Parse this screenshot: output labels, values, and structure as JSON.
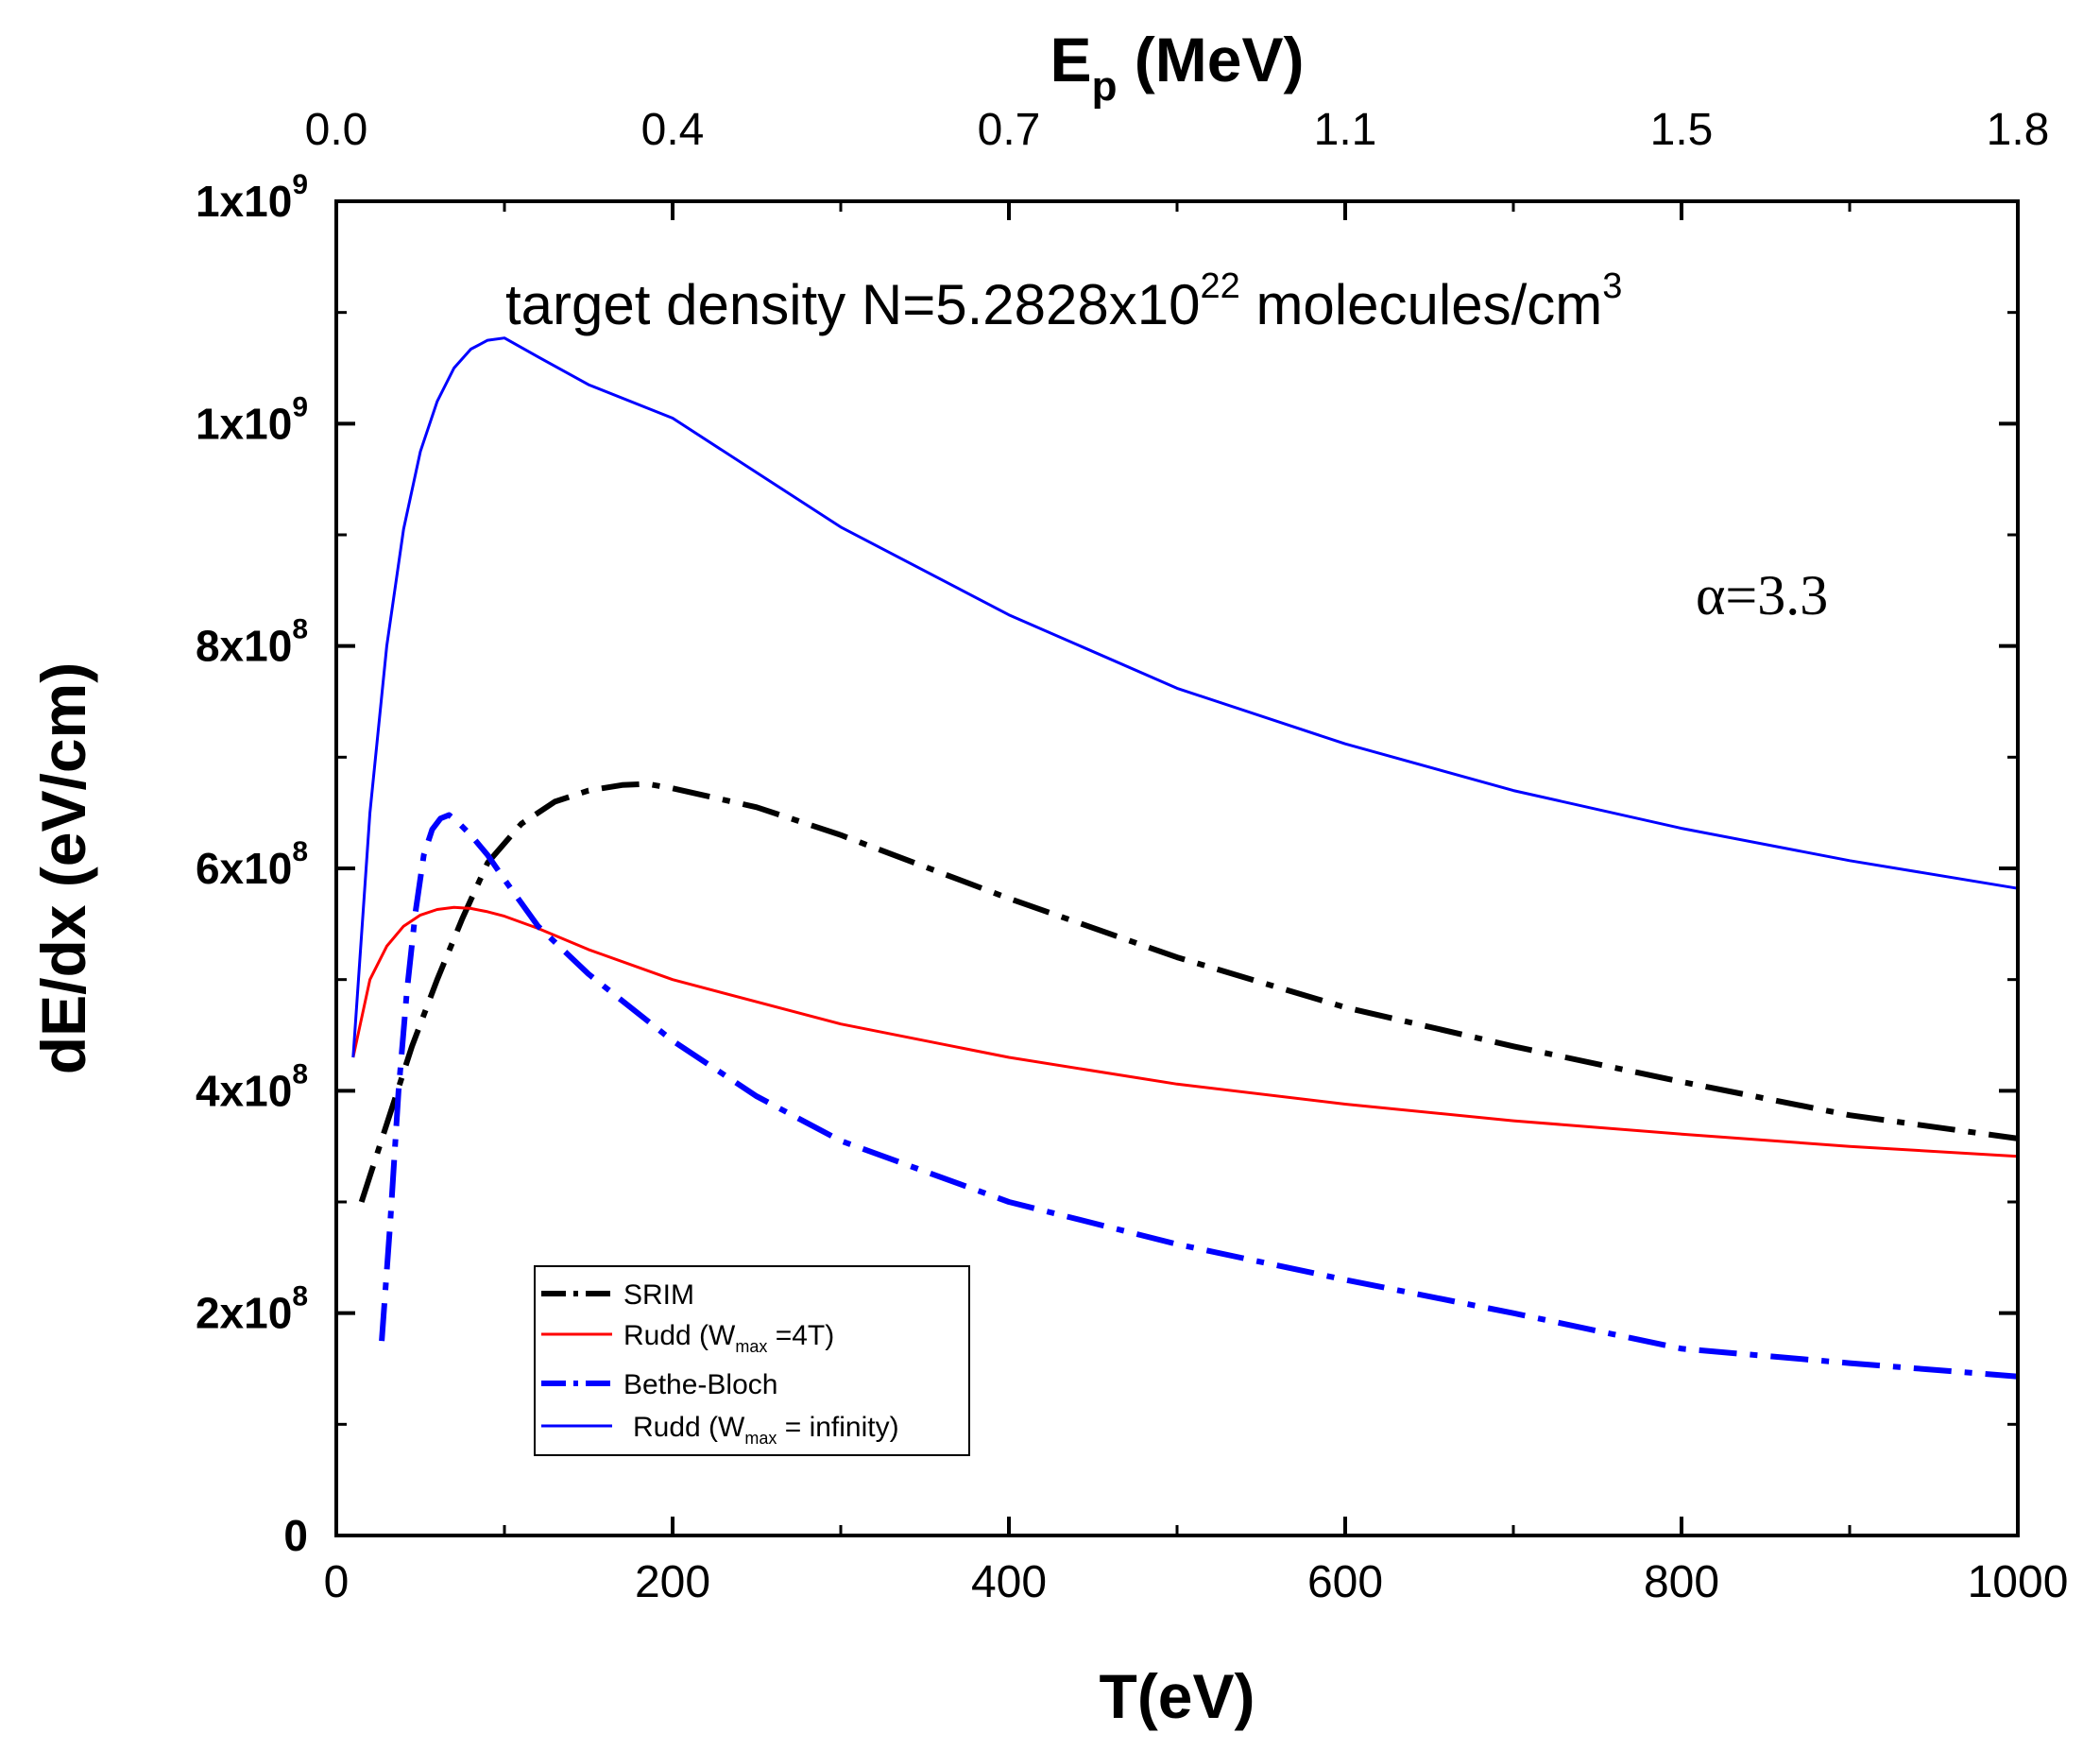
{
  "chart_data": {
    "type": "line",
    "x_axis": {
      "label": "T(eV)",
      "range": [
        0,
        1000
      ],
      "ticks": [
        0,
        200,
        400,
        600,
        800,
        1000
      ],
      "tick_labels": [
        "0",
        "200",
        "400",
        "600",
        "800",
        "1000"
      ]
    },
    "top_axis": {
      "label": "E",
      "label_sub": "p",
      "label_unit": "(MeV)",
      "tick_labels": [
        "0.0",
        "0.4",
        "0.7",
        "1.1",
        "1.5",
        "1.8"
      ]
    },
    "y_axis": {
      "label": "dE/dx (eV/cm)",
      "range": [
        0,
        1200000000
      ],
      "ticks": [
        {
          "value": 0,
          "mant": "0",
          "exp": ""
        },
        {
          "value": 200000000,
          "mant": "2x10",
          "exp": "8"
        },
        {
          "value": 400000000,
          "mant": "4x10",
          "exp": "8"
        },
        {
          "value": 600000000,
          "mant": "6x10",
          "exp": "8"
        },
        {
          "value": 800000000,
          "mant": "8x10",
          "exp": "8"
        },
        {
          "value": 1000000000,
          "mant": "1x10",
          "exp": "9"
        },
        {
          "value": 1200000000,
          "mant": "1x10",
          "exp": "9"
        }
      ]
    },
    "annotations": {
      "density_text": "target density N=5.2828x10",
      "density_exp": "22",
      "density_unit": " molecules/cm",
      "density_unit_exp": "3",
      "alpha_text": "α=3.3"
    },
    "series": [
      {
        "name": "SRIM",
        "label": "SRIM",
        "style": "dashdot",
        "thick": true,
        "color": "#000000",
        "points": [
          [
            15,
            300000000
          ],
          [
            30,
            370000000
          ],
          [
            45,
            440000000
          ],
          [
            60,
            500000000
          ],
          [
            75,
            555000000
          ],
          [
            90,
            605000000
          ],
          [
            110,
            640000000
          ],
          [
            130,
            660000000
          ],
          [
            150,
            670000000
          ],
          [
            170,
            675000000
          ],
          [
            185,
            676000000
          ],
          [
            200,
            672000000
          ],
          [
            250,
            655000000
          ],
          [
            300,
            630000000
          ],
          [
            400,
            573000000
          ],
          [
            500,
            520000000
          ],
          [
            600,
            475000000
          ],
          [
            700,
            440000000
          ],
          [
            800,
            408000000
          ],
          [
            900,
            378000000
          ],
          [
            1000,
            357000000
          ]
        ]
      },
      {
        "name": "Rudd-Wmax-4T",
        "label_pre": "Rudd (W",
        "label_sub": "max",
        "label_post": " =4T)",
        "style": "solid",
        "thick": false,
        "color": "#ff0000",
        "points": [
          [
            10,
            430000000
          ],
          [
            20,
            500000000
          ],
          [
            30,
            530000000
          ],
          [
            40,
            548000000
          ],
          [
            50,
            558000000
          ],
          [
            60,
            563000000
          ],
          [
            70,
            565000000
          ],
          [
            80,
            564000000
          ],
          [
            90,
            561000000
          ],
          [
            100,
            557000000
          ],
          [
            120,
            546000000
          ],
          [
            150,
            527000000
          ],
          [
            200,
            500000000
          ],
          [
            300,
            460000000
          ],
          [
            400,
            430000000
          ],
          [
            500,
            406000000
          ],
          [
            600,
            388000000
          ],
          [
            700,
            373000000
          ],
          [
            800,
            361000000
          ],
          [
            900,
            350000000
          ],
          [
            1000,
            341000000
          ]
        ]
      },
      {
        "name": "Bethe-Bloch",
        "label": "Bethe-Bloch",
        "style": "dashdot",
        "thick": true,
        "color": "#0000ff",
        "points": [
          [
            27,
            175000000
          ],
          [
            32,
            280000000
          ],
          [
            37,
            400000000
          ],
          [
            42,
            490000000
          ],
          [
            47,
            560000000
          ],
          [
            52,
            612000000
          ],
          [
            57,
            635000000
          ],
          [
            62,
            645000000
          ],
          [
            67,
            648000000
          ],
          [
            72,
            642000000
          ],
          [
            80,
            630000000
          ],
          [
            90,
            612000000
          ],
          [
            100,
            590000000
          ],
          [
            120,
            548000000
          ],
          [
            150,
            505000000
          ],
          [
            200,
            445000000
          ],
          [
            250,
            395000000
          ],
          [
            300,
            355000000
          ],
          [
            400,
            300000000
          ],
          [
            500,
            262000000
          ],
          [
            600,
            230000000
          ],
          [
            700,
            200000000
          ],
          [
            800,
            168000000
          ],
          [
            900,
            155000000
          ],
          [
            1000,
            143000000
          ]
        ]
      },
      {
        "name": "Rudd-Wmax-infinity",
        "label_pre": "Rudd (W",
        "label_sub": "max",
        "label_post": " = infinity)",
        "style": "solid",
        "thick": false,
        "color": "#0000ff",
        "points": [
          [
            10,
            430000000
          ],
          [
            20,
            650000000
          ],
          [
            30,
            800000000
          ],
          [
            40,
            905000000
          ],
          [
            50,
            975000000
          ],
          [
            60,
            1020000000
          ],
          [
            70,
            1050000000
          ],
          [
            80,
            1067000000
          ],
          [
            90,
            1075000000
          ],
          [
            100,
            1077000000
          ],
          [
            120,
            1060000000
          ],
          [
            150,
            1035000000
          ],
          [
            200,
            1005000000
          ],
          [
            300,
            907000000
          ],
          [
            400,
            828000000
          ],
          [
            500,
            762000000
          ],
          [
            600,
            712000000
          ],
          [
            700,
            670000000
          ],
          [
            800,
            636000000
          ],
          [
            900,
            607000000
          ],
          [
            1000,
            582000000
          ]
        ]
      }
    ]
  }
}
